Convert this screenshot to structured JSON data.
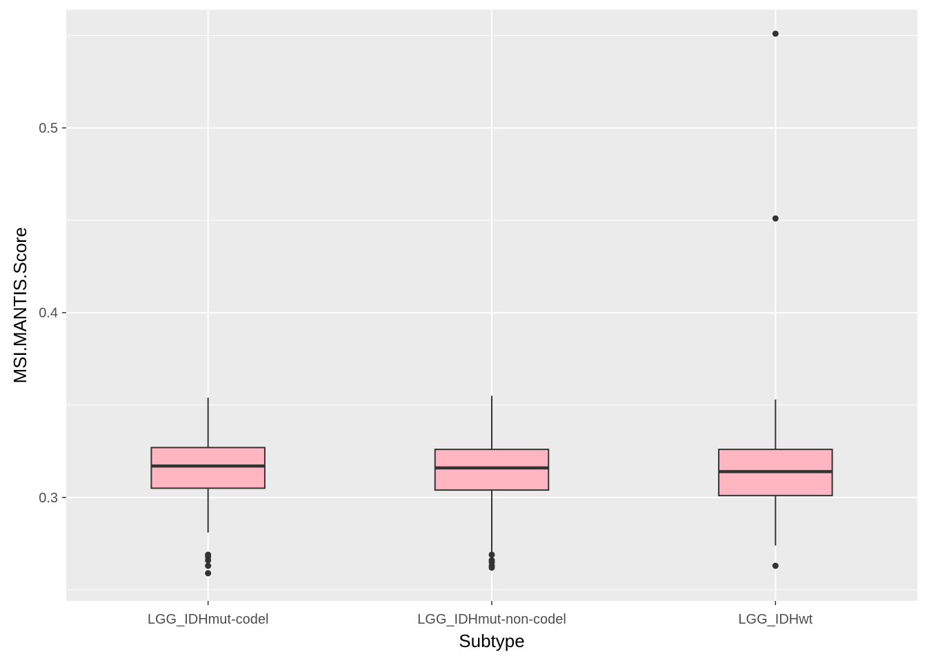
{
  "chart_data": {
    "type": "box",
    "title": "",
    "xlabel": "Subtype",
    "ylabel": "MSI.MANTIS.Score",
    "categories": [
      "LGG_IDHmut-codel",
      "LGG_IDHmut-non-codel",
      "LGG_IDHwt"
    ],
    "ylim": [
      0.244,
      0.564
    ],
    "yticks": [
      0.3,
      0.4,
      0.5
    ],
    "ytick_labels": [
      "0.3",
      "0.4",
      "0.5"
    ],
    "grid": true,
    "legend": "none",
    "boxes": [
      {
        "category": "LGG_IDHmut-codel",
        "whisker_low": 0.281,
        "q1": 0.305,
        "median": 0.317,
        "q3": 0.327,
        "whisker_high": 0.354,
        "outliers": [
          0.259,
          0.263,
          0.266,
          0.268,
          0.269
        ]
      },
      {
        "category": "LGG_IDHmut-non-codel",
        "whisker_low": 0.269,
        "q1": 0.304,
        "median": 0.316,
        "q3": 0.326,
        "whisker_high": 0.355,
        "outliers": [
          0.262,
          0.263,
          0.265,
          0.266,
          0.269
        ]
      },
      {
        "category": "LGG_IDHwt",
        "whisker_low": 0.274,
        "q1": 0.301,
        "median": 0.314,
        "q3": 0.326,
        "whisker_high": 0.353,
        "outliers": [
          0.263,
          0.451,
          0.551
        ]
      }
    ],
    "colors": {
      "panel_bg": "#ebebeb",
      "grid": "#ffffff",
      "box_fill": "#ffb6c1",
      "box_line": "#333333",
      "outlier": "#333333",
      "tick_text": "#4d4d4d",
      "title_text": "#000000"
    }
  }
}
